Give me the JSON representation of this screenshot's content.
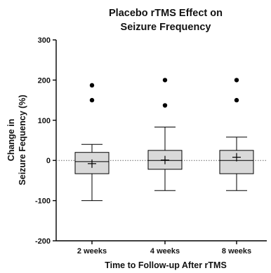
{
  "chart_data": {
    "type": "box",
    "title_lines": [
      "Placebo rTMS Effect on",
      "Seizure Frequency"
    ],
    "xlabel": "Time to Follow-up After rTMS",
    "ylabel_lines": [
      "Change in",
      "Seizure Fequency (%)"
    ],
    "categories": [
      "2 weeks",
      "4 weeks",
      "8 weeks"
    ],
    "ylim": [
      -200,
      300
    ],
    "yticks": [
      -200,
      -100,
      0,
      100,
      200,
      300
    ],
    "reference_line": 0,
    "boxes": [
      {
        "category": "2 weeks",
        "whisker_low": -100,
        "q1": -33,
        "median": -3,
        "q3": 20,
        "whisker_high": 40,
        "mean": -8,
        "outliers": [
          150,
          187
        ]
      },
      {
        "category": "4 weeks",
        "whisker_low": -75,
        "q1": -22,
        "median": 0,
        "q3": 25,
        "whisker_high": 83,
        "mean": 1,
        "outliers": [
          137,
          200
        ]
      },
      {
        "category": "8 weeks",
        "whisker_low": -75,
        "q1": -33,
        "median": 0,
        "q3": 25,
        "whisker_high": 58,
        "mean": 8,
        "outliers": [
          150,
          200
        ]
      }
    ],
    "colors": {
      "box_fill": "#d9d9d9",
      "stroke": "#000000",
      "reference": "#666666"
    }
  }
}
